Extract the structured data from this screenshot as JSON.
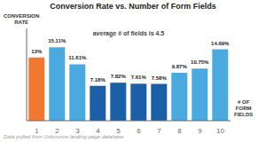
{
  "chart_data": {
    "type": "bar",
    "title": "Conversion Rate vs. Number of Form Fields",
    "categories": [
      1,
      2,
      3,
      4,
      5,
      6,
      7,
      8,
      9,
      10
    ],
    "values": [
      13.0,
      15.11,
      11.61,
      7.18,
      7.82,
      7.61,
      7.58,
      9.87,
      10.75,
      14.69
    ],
    "value_labels": [
      "13%",
      "15.11%",
      "11.61%",
      "7.18%",
      "7.82%",
      "7.61%",
      "7.58%",
      "9.87%",
      "10.75%",
      "14.69%"
    ],
    "colors": [
      "#f07830",
      "#4aaae0",
      "#4aaae0",
      "#1a5fa8",
      "#1a5fa8",
      "#1a5fa8",
      "#1a5fa8",
      "#4aaae0",
      "#4aaae0",
      "#4aaae0"
    ],
    "ylim": [
      0,
      19
    ],
    "data_labels": true,
    "tick_labels": "x",
    "grid": false,
    "xlabel": "# OF\nFORM\nFIELDS",
    "ylabel": "CONVERSION\nRATE",
    "annotations": [
      "average # of fields is 4.5"
    ],
    "footnote": "Data pulled from Unbounce landing page database"
  }
}
